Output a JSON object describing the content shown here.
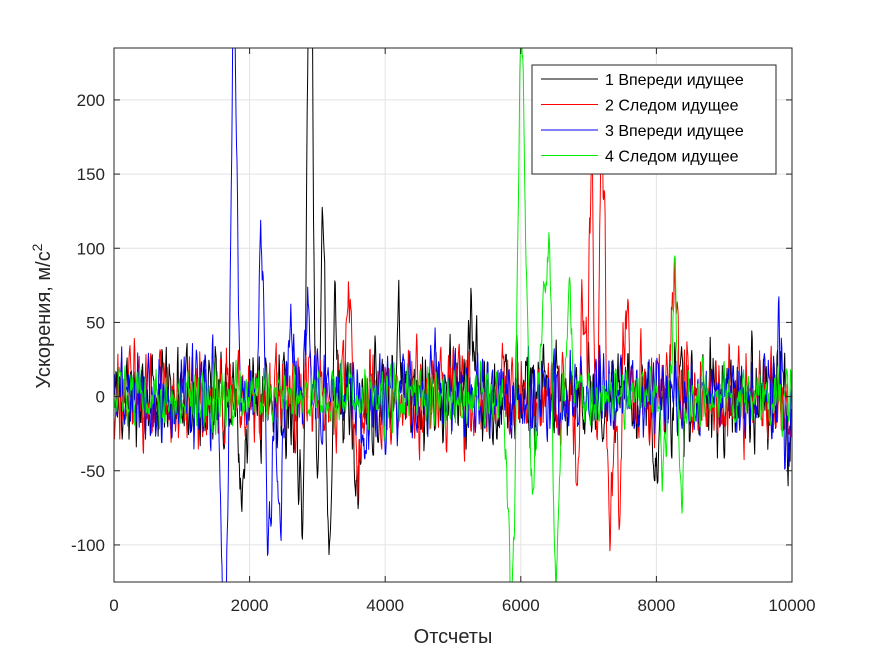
{
  "chart_data": {
    "type": "line",
    "title": "",
    "xlabel": "Отсчеты",
    "ylabel_main": "Ускорения, м/с",
    "ylabel_sup": "2",
    "xlim": [
      0,
      10000
    ],
    "ylim": [
      -125,
      235
    ],
    "xticks": [
      0,
      2000,
      4000,
      6000,
      8000,
      10000
    ],
    "xtick_labels": [
      "0",
      "2000",
      "4000",
      "6000",
      "8000",
      "10000"
    ],
    "yticks": [
      -100,
      -50,
      0,
      50,
      100,
      150,
      200
    ],
    "ytick_labels": [
      "-100",
      "-50",
      "0",
      "50",
      "100",
      "150",
      "200"
    ],
    "grid": true,
    "legend_position": "top-right",
    "series": [
      {
        "name": "1 Впереди идущее",
        "color": "#000000",
        "noise": 18,
        "seed": 11,
        "events": [
          {
            "x": 2880,
            "y": 232
          },
          {
            "x": 2920,
            "y": 170
          },
          {
            "x": 2780,
            "y": -95
          },
          {
            "x": 2990,
            "y": -110
          },
          {
            "x": 3070,
            "y": 136
          },
          {
            "x": 3180,
            "y": -115
          },
          {
            "x": 3240,
            "y": 72
          },
          {
            "x": 1900,
            "y": -70
          },
          {
            "x": 3580,
            "y": -70
          },
          {
            "x": 4200,
            "y": 52
          },
          {
            "x": 5280,
            "y": 55
          },
          {
            "x": 8000,
            "y": -58
          },
          {
            "x": 9980,
            "y": -35
          }
        ]
      },
      {
        "name": "2 Следом идущее",
        "color": "#ff0000",
        "noise": 18,
        "seed": 23,
        "events": [
          {
            "x": 7050,
            "y": 155
          },
          {
            "x": 7180,
            "y": 150
          },
          {
            "x": 7120,
            "y": -110
          },
          {
            "x": 7300,
            "y": -120
          },
          {
            "x": 7240,
            "y": 90
          },
          {
            "x": 6850,
            "y": -65
          },
          {
            "x": 6900,
            "y": 70
          },
          {
            "x": 7550,
            "y": 62
          },
          {
            "x": 7450,
            "y": -60
          },
          {
            "x": 3460,
            "y": 70
          },
          {
            "x": 3600,
            "y": -45
          },
          {
            "x": 8260,
            "y": 78
          }
        ]
      },
      {
        "name": "3 Впереди идущее",
        "color": "#0000ff",
        "noise": 16,
        "seed": 37,
        "events": [
          {
            "x": 1780,
            "y": 162
          },
          {
            "x": 1760,
            "y": 120
          },
          {
            "x": 1640,
            "y": -125
          },
          {
            "x": 1600,
            "y": -60
          },
          {
            "x": 2180,
            "y": 108
          },
          {
            "x": 2280,
            "y": -110
          },
          {
            "x": 2440,
            "y": -90
          },
          {
            "x": 2620,
            "y": 45
          },
          {
            "x": 2860,
            "y": 50
          },
          {
            "x": 3700,
            "y": -48
          },
          {
            "x": 9840,
            "y": 52
          },
          {
            "x": 9900,
            "y": -48
          },
          {
            "x": 4700,
            "y": 30
          }
        ]
      },
      {
        "name": "4 Следом идущее",
        "color": "#00ee00",
        "noise": 11,
        "seed": 53,
        "events": [
          {
            "x": 5990,
            "y": 165
          },
          {
            "x": 6040,
            "y": 130
          },
          {
            "x": 5880,
            "y": -118
          },
          {
            "x": 5820,
            "y": -60
          },
          {
            "x": 6180,
            "y": -55
          },
          {
            "x": 6520,
            "y": -128
          },
          {
            "x": 6420,
            "y": 97
          },
          {
            "x": 6720,
            "y": 63
          },
          {
            "x": 8280,
            "y": 92
          },
          {
            "x": 8350,
            "y": -85
          },
          {
            "x": 8100,
            "y": -50
          },
          {
            "x": 6330,
            "y": 50
          }
        ]
      }
    ]
  }
}
